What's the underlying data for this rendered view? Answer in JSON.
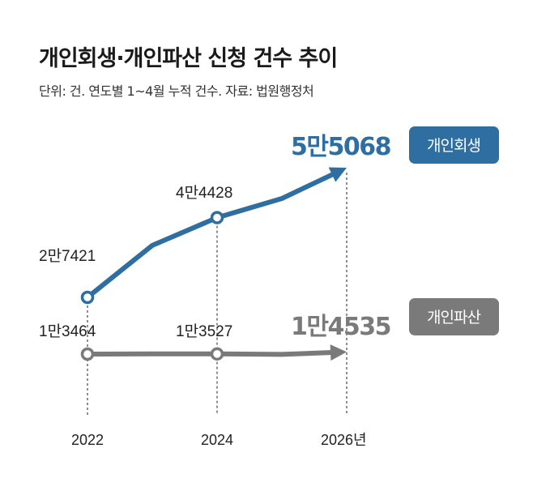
{
  "title": "개인회생·개인파산 신청 건수 추이",
  "subtitle": "단위: 건. 연도별 1~4월 누적 건수. 자료: 법원행정처",
  "colors": {
    "rehab": "#2f6ea0",
    "bankrupt": "#7a7a7a"
  },
  "chart_data": {
    "type": "line",
    "x_ticks": [
      "2022",
      "2024",
      "2026년"
    ],
    "x": [
      2022,
      2023,
      2024,
      2025,
      2026
    ],
    "ylim": [
      0,
      60000
    ],
    "grid": false,
    "series": [
      {
        "name": "개인회생",
        "values": [
          27421,
          38500,
          44428,
          48500,
          55068
        ],
        "labels": [
          "2만7421",
          "",
          "4만4428",
          "",
          "5만5068"
        ]
      },
      {
        "name": "개인파산",
        "values": [
          13464,
          13550,
          13527,
          13300,
          14535
        ],
        "labels": [
          "1만3464",
          "",
          "1만3527",
          "",
          "1만4535"
        ]
      }
    ]
  }
}
